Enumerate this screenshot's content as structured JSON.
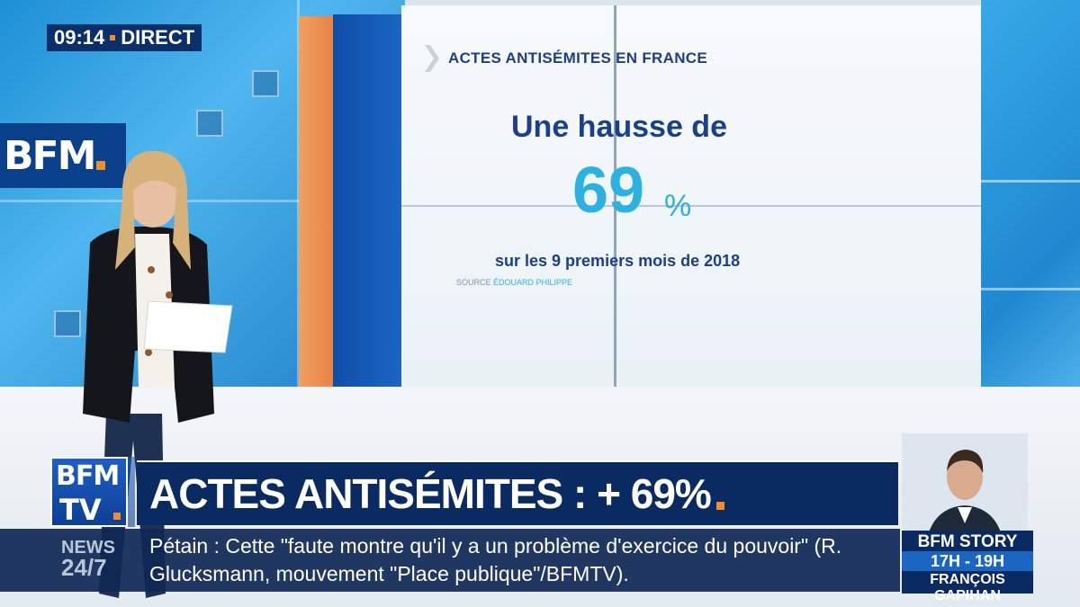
{
  "clock": {
    "time": "09:14",
    "live_label": "DIRECT"
  },
  "wall_logo": "BFM",
  "panel": {
    "title": "ACTES ANTISÉMITES EN FRANCE",
    "headline": "Une hausse de",
    "value": "69",
    "unit": "%",
    "subline": "sur les 9 premiers mois de 2018",
    "source_label": "SOURCE",
    "source_name": "ÉDOUARD PHILIPPE"
  },
  "channel_logo": {
    "line1": "BFM",
    "line2": "TV"
  },
  "lower_third": {
    "headline": "ACTES ANTISÉMITES : + 69%"
  },
  "ticker": {
    "label_top": "NEWS",
    "label_bottom": "24/7",
    "text": "Pétain : Cette \"faute montre qu'il y a un problème d'exercice du pouvoir\" (R. Glucksmann, mouvement \"Place publique\"/BFMTV)."
  },
  "show": {
    "title": "BFM STORY",
    "time": "17H - 19H",
    "host": "FRANÇOIS GAPIHAN"
  },
  "colors": {
    "brand_blue": "#0a2a62",
    "accent_orange": "#f28c28",
    "number_cyan": "#2bb2e3",
    "title_blue": "#1b3f8a"
  }
}
